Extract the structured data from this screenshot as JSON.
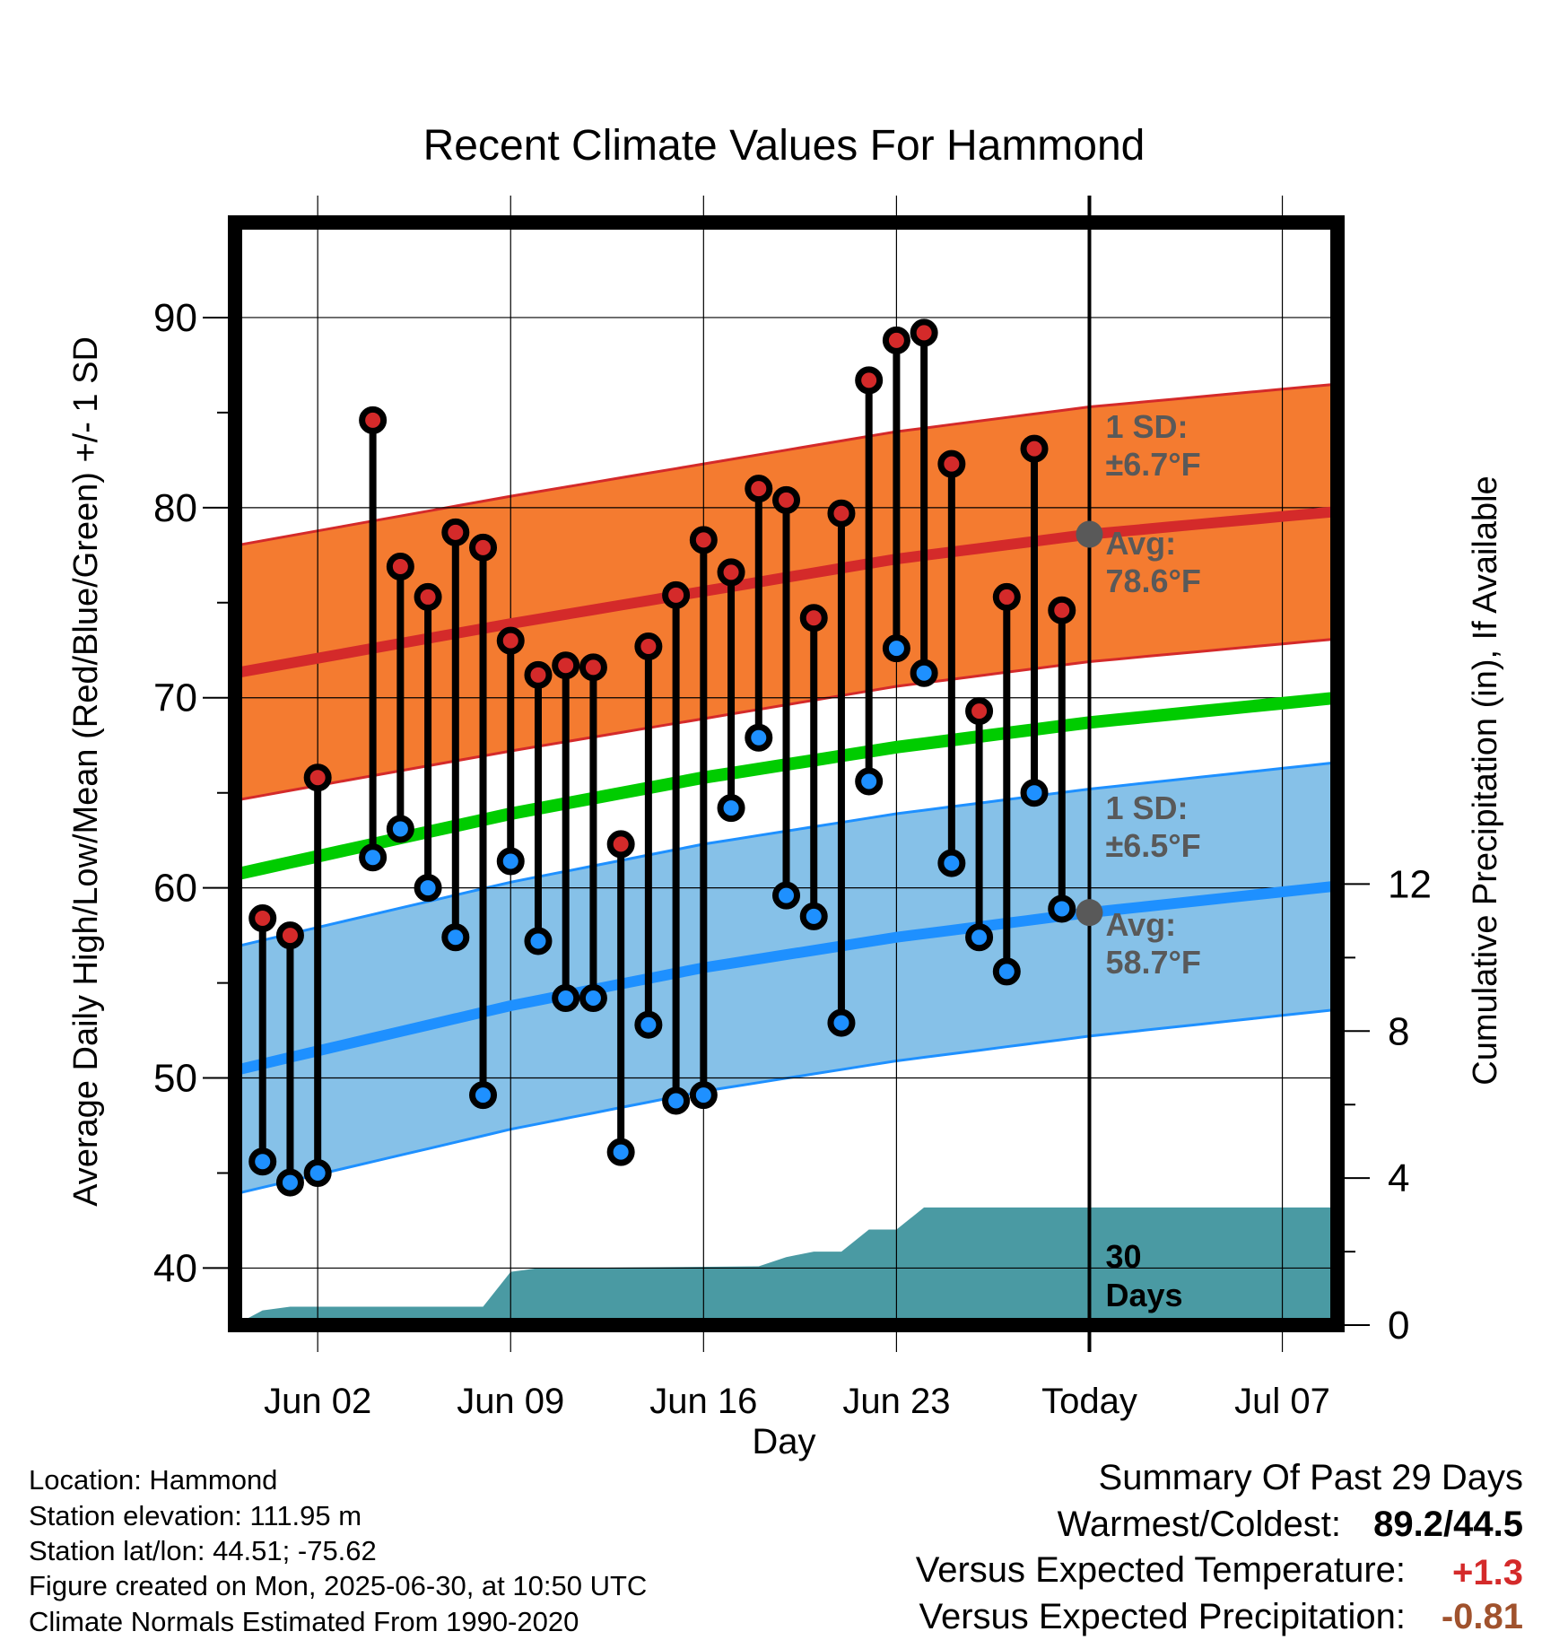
{
  "chart_data": {
    "type": "line",
    "title": "Recent Climate Values For Hammond",
    "xlabel": "Day",
    "ylabel": "Average Daily High/Low/Mean (Red/Blue/Green) +/- 1 SD",
    "y2label": "Cumulative Precipitation (in), If Available",
    "x_range": [
      "2025-05-30",
      "2025-07-09"
    ],
    "ylim": [
      37,
      95
    ],
    "y2lim": [
      0,
      30
    ],
    "y_ticks": [
      40,
      50,
      60,
      70,
      80,
      90
    ],
    "y2_ticks": [
      0,
      4,
      8,
      12
    ],
    "x_ticks": [
      {
        "date": "2025-06-02",
        "label": "Jun 02"
      },
      {
        "date": "2025-06-09",
        "label": "Jun 09"
      },
      {
        "date": "2025-06-16",
        "label": "Jun 16"
      },
      {
        "date": "2025-06-23",
        "label": "Jun 23"
      },
      {
        "date": "2025-06-30",
        "label": "Today"
      },
      {
        "date": "2025-07-07",
        "label": "Jul 07"
      }
    ],
    "grid": true,
    "colors": {
      "high": "#d42a2a",
      "low": "#1e90ff",
      "mean": "#00cc00",
      "high_band": "#f47b30",
      "low_band": "#86c1e8",
      "precip": "#4a9aa3",
      "annotation": "#595959"
    },
    "daily": [
      {
        "date": "2025-05-31",
        "high": 58.4,
        "low": 45.6
      },
      {
        "date": "2025-06-01",
        "high": 57.5,
        "low": 44.5
      },
      {
        "date": "2025-06-02",
        "high": 65.8,
        "low": 45.0
      },
      {
        "date": "2025-06-04",
        "high": 84.6,
        "low": 61.6
      },
      {
        "date": "2025-06-05",
        "high": 76.9,
        "low": 63.1
      },
      {
        "date": "2025-06-06",
        "high": 75.3,
        "low": 60.0
      },
      {
        "date": "2025-06-07",
        "high": 78.7,
        "low": 57.4
      },
      {
        "date": "2025-06-08",
        "high": 77.9,
        "low": 49.1
      },
      {
        "date": "2025-06-09",
        "high": 73.0,
        "low": 61.4
      },
      {
        "date": "2025-06-10",
        "high": 71.2,
        "low": 57.2
      },
      {
        "date": "2025-06-11",
        "high": 71.7,
        "low": 54.2
      },
      {
        "date": "2025-06-12",
        "high": 71.6,
        "low": 54.2
      },
      {
        "date": "2025-06-13",
        "high": 62.3,
        "low": 46.1
      },
      {
        "date": "2025-06-14",
        "high": 72.7,
        "low": 52.8
      },
      {
        "date": "2025-06-15",
        "high": 75.4,
        "low": 48.8
      },
      {
        "date": "2025-06-16",
        "high": 78.3,
        "low": 49.1
      },
      {
        "date": "2025-06-17",
        "high": 76.6,
        "low": 64.2
      },
      {
        "date": "2025-06-18",
        "high": 81.0,
        "low": 67.9
      },
      {
        "date": "2025-06-19",
        "high": 80.4,
        "low": 59.6
      },
      {
        "date": "2025-06-20",
        "high": 74.2,
        "low": 58.5
      },
      {
        "date": "2025-06-21",
        "high": 79.7,
        "low": 52.9
      },
      {
        "date": "2025-06-22",
        "high": 86.7,
        "low": 65.6
      },
      {
        "date": "2025-06-23",
        "high": 88.8,
        "low": 72.6
      },
      {
        "date": "2025-06-24",
        "high": 89.2,
        "low": 71.3
      },
      {
        "date": "2025-06-25",
        "high": 82.3,
        "low": 61.3
      },
      {
        "date": "2025-06-26",
        "high": 69.3,
        "low": 57.4
      },
      {
        "date": "2025-06-27",
        "high": 75.3,
        "low": 55.6
      },
      {
        "date": "2025-06-28",
        "high": 83.1,
        "low": 65.0
      },
      {
        "date": "2025-06-29",
        "high": 74.6,
        "low": 58.9
      }
    ],
    "normal_high": [
      {
        "date": "2025-05-30",
        "value": 71.3
      },
      {
        "date": "2025-06-09",
        "value": 73.9
      },
      {
        "date": "2025-06-16",
        "value": 75.6
      },
      {
        "date": "2025-06-23",
        "value": 77.3
      },
      {
        "date": "2025-06-30",
        "value": 78.6
      },
      {
        "date": "2025-07-09",
        "value": 79.8
      }
    ],
    "normal_low": [
      {
        "date": "2025-05-30",
        "value": 50.4
      },
      {
        "date": "2025-06-09",
        "value": 53.8
      },
      {
        "date": "2025-06-16",
        "value": 55.8
      },
      {
        "date": "2025-06-23",
        "value": 57.4
      },
      {
        "date": "2025-06-30",
        "value": 58.7
      },
      {
        "date": "2025-07-09",
        "value": 60.1
      }
    ],
    "normal_mean": [
      {
        "date": "2025-05-30",
        "value": 60.7
      },
      {
        "date": "2025-06-09",
        "value": 63.9
      },
      {
        "date": "2025-06-16",
        "value": 65.8
      },
      {
        "date": "2025-06-23",
        "value": 67.4
      },
      {
        "date": "2025-06-30",
        "value": 68.7
      },
      {
        "date": "2025-07-09",
        "value": 70.0
      }
    ],
    "sd_high": 6.7,
    "sd_low": 6.5,
    "precip_cumulative": [
      {
        "date": "2025-05-30",
        "value": 0.0
      },
      {
        "date": "2025-05-31",
        "value": 0.4
      },
      {
        "date": "2025-06-01",
        "value": 0.5
      },
      {
        "date": "2025-06-08",
        "value": 0.5
      },
      {
        "date": "2025-06-09",
        "value": 1.45
      },
      {
        "date": "2025-06-10",
        "value": 1.55
      },
      {
        "date": "2025-06-12",
        "value": 1.56
      },
      {
        "date": "2025-06-18",
        "value": 1.6
      },
      {
        "date": "2025-06-19",
        "value": 1.85
      },
      {
        "date": "2025-06-20",
        "value": 2.0
      },
      {
        "date": "2025-06-21",
        "value": 2.0
      },
      {
        "date": "2025-06-22",
        "value": 2.6
      },
      {
        "date": "2025-06-23",
        "value": 2.6
      },
      {
        "date": "2025-06-24",
        "value": 3.2
      },
      {
        "date": "2025-07-09",
        "value": 3.2
      }
    ],
    "annotations": {
      "high_sd_line1": "1 SD:",
      "high_sd_line2": "±6.7°F",
      "high_avg_line1": "Avg:",
      "high_avg_line2": "78.6°F",
      "low_sd_line1": "1 SD:",
      "low_sd_line2": "±6.5°F",
      "low_avg_line1": "Avg:",
      "low_avg_line2": "58.7°F",
      "days_line1": "30",
      "days_line2": "Days"
    }
  },
  "footer": {
    "location": "Location: Hammond",
    "elevation": "Station elevation: 111.95 m",
    "latlon": "Station lat/lon: 44.51; -75.62",
    "created": "Figure created on Mon, 2025-06-30, at 10:50 UTC",
    "normals": "Climate Normals Estimated From 1990-2020"
  },
  "summary": {
    "title": "Summary Of Past 29 Days",
    "warm_cold_label": "Warmest/Coldest:",
    "warm_cold_value": "89.2/44.5",
    "temp_label": "Versus Expected Temperature:",
    "temp_value": "+1.3",
    "temp_color": "#d42a2a",
    "precip_label": "Versus Expected Precipitation:",
    "precip_value": "-0.81",
    "precip_color": "#a0522d"
  }
}
